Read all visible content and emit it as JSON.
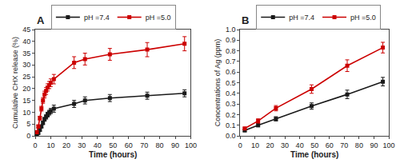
{
  "chart_data": [
    {
      "type": "line",
      "title": "A",
      "xlabel": "Time (hours)",
      "ylabel": "Cumulative CHX release (%)",
      "xlim": [
        0,
        100
      ],
      "ylim": [
        0,
        45
      ],
      "xticks": [
        0,
        10,
        20,
        30,
        40,
        50,
        60,
        70,
        80,
        90,
        100
      ],
      "yticks": [
        0,
        5,
        10,
        15,
        20,
        25,
        30,
        35,
        40,
        45
      ],
      "grid": false,
      "legend": "upper left",
      "marker": "square",
      "line_style": "solid",
      "x": [
        1,
        2,
        3,
        4,
        5,
        6,
        7,
        8,
        9,
        10,
        12,
        25,
        32,
        48,
        72,
        96
      ],
      "series": [
        {
          "name": "pH =7.4",
          "color": "#1a1a1a",
          "values": [
            0.5,
            1.2,
            2.5,
            4.0,
            5.5,
            7.0,
            8.0,
            9.0,
            9.8,
            10.5,
            11.5,
            13.5,
            15.0,
            16.0,
            17.0,
            18.0
          ],
          "errors": [
            0.3,
            0.4,
            0.5,
            0.6,
            0.7,
            0.8,
            0.9,
            1.0,
            1.0,
            1.1,
            1.5,
            1.5,
            1.5,
            1.5,
            1.5,
            1.5
          ]
        },
        {
          "name": "pH =5.0",
          "color": "#cc0000",
          "values": [
            1.5,
            4.0,
            7.5,
            11.5,
            15.0,
            17.5,
            19.0,
            20.5,
            21.5,
            22.5,
            24.0,
            31.0,
            32.5,
            34.5,
            36.5,
            39.0
          ],
          "errors": [
            0.4,
            0.6,
            0.8,
            1.0,
            1.2,
            1.4,
            1.5,
            1.5,
            1.5,
            1.6,
            2.0,
            2.5,
            2.5,
            2.5,
            3.0,
            3.0
          ]
        }
      ]
    },
    {
      "type": "line",
      "title": "B",
      "xlabel": "Time (hours)",
      "ylabel": "Concentrations of Ag (ppm)",
      "xlim": [
        0,
        100
      ],
      "ylim": [
        0,
        1.0
      ],
      "xticks": [
        0,
        10,
        20,
        30,
        40,
        50,
        60,
        70,
        80,
        90,
        100
      ],
      "yticks": [
        {
          "value": 0,
          "label": "0.0"
        },
        0.1,
        0.2,
        0.3,
        0.4,
        0.5,
        0.6,
        0.7,
        0.8,
        0.9,
        {
          "value": 1.0,
          "label": "1.0"
        }
      ],
      "grid": false,
      "legend": "upper left",
      "marker": "square",
      "line_style": "solid",
      "x": [
        3,
        12,
        24,
        48,
        72,
        96
      ],
      "series": [
        {
          "name": "pH =7.4",
          "color": "#1a1a1a",
          "values": [
            0.05,
            0.1,
            0.16,
            0.28,
            0.39,
            0.51
          ],
          "errors": [
            0.01,
            0.015,
            0.02,
            0.03,
            0.04,
            0.04
          ]
        },
        {
          "name": "pH =5.0",
          "color": "#cc0000",
          "values": [
            0.07,
            0.14,
            0.26,
            0.44,
            0.66,
            0.83
          ],
          "errors": [
            0.01,
            0.02,
            0.025,
            0.04,
            0.055,
            0.05
          ]
        }
      ]
    }
  ]
}
